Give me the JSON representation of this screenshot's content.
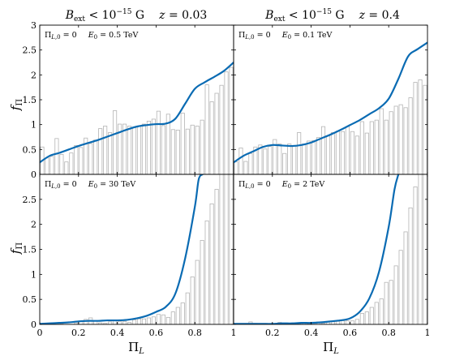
{
  "titles": {
    "left": "B_ext < 10^-15 G     z = 0.03",
    "right": "B_ext < 10^-15 G     z = 0.4"
  },
  "axis_labels": {
    "y": "f_Π",
    "x": "Π_L"
  },
  "colors": {
    "curve": "#0a6bb3",
    "bar_edge": "#b4b4b4"
  },
  "chart_data": [
    {
      "type": "bar",
      "panel": "top-left",
      "annotation": {
        "pi": "Π_L,0 = 0",
        "energy": "E_0 = 0.5 TeV"
      },
      "bin_width": 0.025,
      "bin_start": 0.0,
      "values": [
        0.55,
        0.33,
        0.36,
        0.72,
        0.4,
        0.25,
        0.43,
        0.58,
        0.54,
        0.73,
        0.62,
        0.69,
        0.92,
        0.97,
        0.84,
        1.28,
        1.01,
        1.01,
        0.97,
        0.94,
        0.96,
        1.01,
        1.07,
        1.11,
        1.27,
        0.98,
        1.21,
        0.9,
        0.89,
        1.23,
        0.91,
        0.99,
        0.97,
        1.09,
        1.8,
        1.46,
        1.63,
        1.79,
        2.06,
        2.15,
        1.92
      ],
      "curve_x": [
        0.0,
        0.05,
        0.1,
        0.15,
        0.2,
        0.25,
        0.3,
        0.35,
        0.4,
        0.45,
        0.5,
        0.55,
        0.6,
        0.65,
        0.7,
        0.75,
        0.8,
        0.85,
        0.9,
        0.95,
        1.0
      ],
      "curve_y": [
        0.24,
        0.37,
        0.43,
        0.5,
        0.57,
        0.63,
        0.69,
        0.76,
        0.83,
        0.9,
        0.96,
        0.99,
        1.01,
        1.02,
        1.12,
        1.42,
        1.72,
        1.85,
        1.96,
        2.08,
        2.25
      ],
      "xlim": [
        0,
        1
      ],
      "ylim": [
        0,
        3
      ],
      "yticks": [
        0,
        0.5,
        1,
        1.5,
        2,
        2.5,
        3
      ]
    },
    {
      "type": "bar",
      "panel": "top-right",
      "annotation": {
        "pi": "Π_L,0 = 0",
        "energy": "E_0 = 0.1 TeV"
      },
      "bin_width": 0.025,
      "bin_start": 0.0,
      "values": [
        0.25,
        0.53,
        0.26,
        0.42,
        0.55,
        0.59,
        0.51,
        0.56,
        0.7,
        0.61,
        0.42,
        0.61,
        0.57,
        0.84,
        0.61,
        0.67,
        0.68,
        0.74,
        0.96,
        0.77,
        0.84,
        0.87,
        0.86,
        0.96,
        0.86,
        0.77,
        1.06,
        0.83,
        1.06,
        1.09,
        1.32,
        1.09,
        1.26,
        1.37,
        1.4,
        1.34,
        1.54,
        1.85,
        1.9,
        1.79,
        2.64
      ],
      "curve_x": [
        0.0,
        0.05,
        0.1,
        0.15,
        0.2,
        0.25,
        0.3,
        0.35,
        0.4,
        0.45,
        0.5,
        0.55,
        0.6,
        0.65,
        0.7,
        0.75,
        0.8,
        0.85,
        0.9,
        0.95,
        1.0
      ],
      "curve_y": [
        0.24,
        0.37,
        0.46,
        0.55,
        0.59,
        0.58,
        0.57,
        0.59,
        0.64,
        0.72,
        0.8,
        0.89,
        0.99,
        1.09,
        1.21,
        1.33,
        1.52,
        1.92,
        2.37,
        2.52,
        2.65
      ],
      "xlim": [
        0,
        1
      ],
      "ylim": [
        0,
        3
      ],
      "yticks": [
        0,
        0.5,
        1,
        1.5,
        2,
        2.5,
        3
      ]
    },
    {
      "type": "bar",
      "panel": "bottom-left",
      "annotation": {
        "pi": "Π_L,0 = 0",
        "energy": "E_0 = 30 TeV"
      },
      "bin_width": 0.025,
      "bin_start": 0.0,
      "values": [
        0.0,
        0.0,
        0.01,
        0.03,
        0.01,
        0.0,
        0.0,
        0.03,
        0.07,
        0.1,
        0.13,
        0.07,
        0.03,
        0.02,
        0.05,
        0.08,
        0.06,
        0.06,
        0.04,
        0.09,
        0.11,
        0.11,
        0.13,
        0.15,
        0.2,
        0.19,
        0.14,
        0.25,
        0.34,
        0.43,
        0.63,
        0.95,
        1.28,
        1.68,
        2.07,
        2.41,
        2.7,
        3.0,
        3.0,
        3.0,
        3.0
      ],
      "curve_x": [
        0.0,
        0.05,
        0.1,
        0.15,
        0.2,
        0.25,
        0.3,
        0.35,
        0.4,
        0.45,
        0.5,
        0.55,
        0.6,
        0.65,
        0.7,
        0.75,
        0.8,
        0.82,
        0.84
      ],
      "curve_y": [
        0.01,
        0.02,
        0.03,
        0.04,
        0.06,
        0.07,
        0.07,
        0.08,
        0.08,
        0.09,
        0.12,
        0.17,
        0.25,
        0.35,
        0.62,
        1.32,
        2.35,
        2.9,
        3.0
      ],
      "xlim": [
        0,
        1
      ],
      "ylim": [
        0,
        3
      ],
      "yticks": [
        0,
        0.5,
        1,
        1.5,
        2,
        2.5
      ],
      "xticks": [
        0,
        0.2,
        0.4,
        0.6,
        0.8,
        1
      ]
    },
    {
      "type": "bar",
      "panel": "bottom-right",
      "annotation": {
        "pi": "Π_L,0 = 0",
        "energy": "E_0 = 2 TeV"
      },
      "bin_width": 0.025,
      "bin_start": 0.0,
      "values": [
        0.0,
        0.0,
        0.0,
        0.05,
        0.02,
        0.0,
        0.0,
        0.0,
        0.0,
        0.04,
        0.0,
        0.02,
        0.03,
        0.01,
        0.03,
        0.01,
        0.02,
        0.05,
        0.02,
        0.04,
        0.05,
        0.06,
        0.07,
        0.07,
        0.07,
        0.1,
        0.22,
        0.25,
        0.34,
        0.44,
        0.51,
        0.84,
        0.88,
        1.17,
        1.48,
        1.85,
        2.33,
        2.75,
        3.0,
        3.0,
        3.0
      ],
      "curve_x": [
        0.0,
        0.05,
        0.1,
        0.15,
        0.2,
        0.25,
        0.3,
        0.35,
        0.4,
        0.45,
        0.5,
        0.55,
        0.6,
        0.65,
        0.7,
        0.75,
        0.8,
        0.83,
        0.85
      ],
      "curve_y": [
        0.01,
        0.01,
        0.01,
        0.01,
        0.01,
        0.02,
        0.02,
        0.03,
        0.03,
        0.04,
        0.06,
        0.08,
        0.12,
        0.25,
        0.52,
        1.05,
        1.95,
        2.7,
        3.0
      ],
      "xlim": [
        0,
        1
      ],
      "ylim": [
        0,
        3
      ],
      "yticks": [
        0,
        0.5,
        1,
        1.5,
        2,
        2.5
      ],
      "xticks": [
        0,
        0.2,
        0.4,
        0.6,
        0.8,
        1
      ]
    }
  ],
  "tick_text": {
    "y_top": [
      "0",
      "0.5",
      "1",
      "1.5",
      "2",
      "2.5",
      "3"
    ],
    "y_bottom": [
      "0",
      "0.5",
      "1",
      "1.5",
      "2",
      "2.5",
      "3"
    ],
    "x": [
      "0",
      "0.2",
      "0.4",
      "0.6",
      "0.8",
      "1",
      "0.2",
      "0.4",
      "0.6",
      "0.8",
      "1"
    ]
  }
}
